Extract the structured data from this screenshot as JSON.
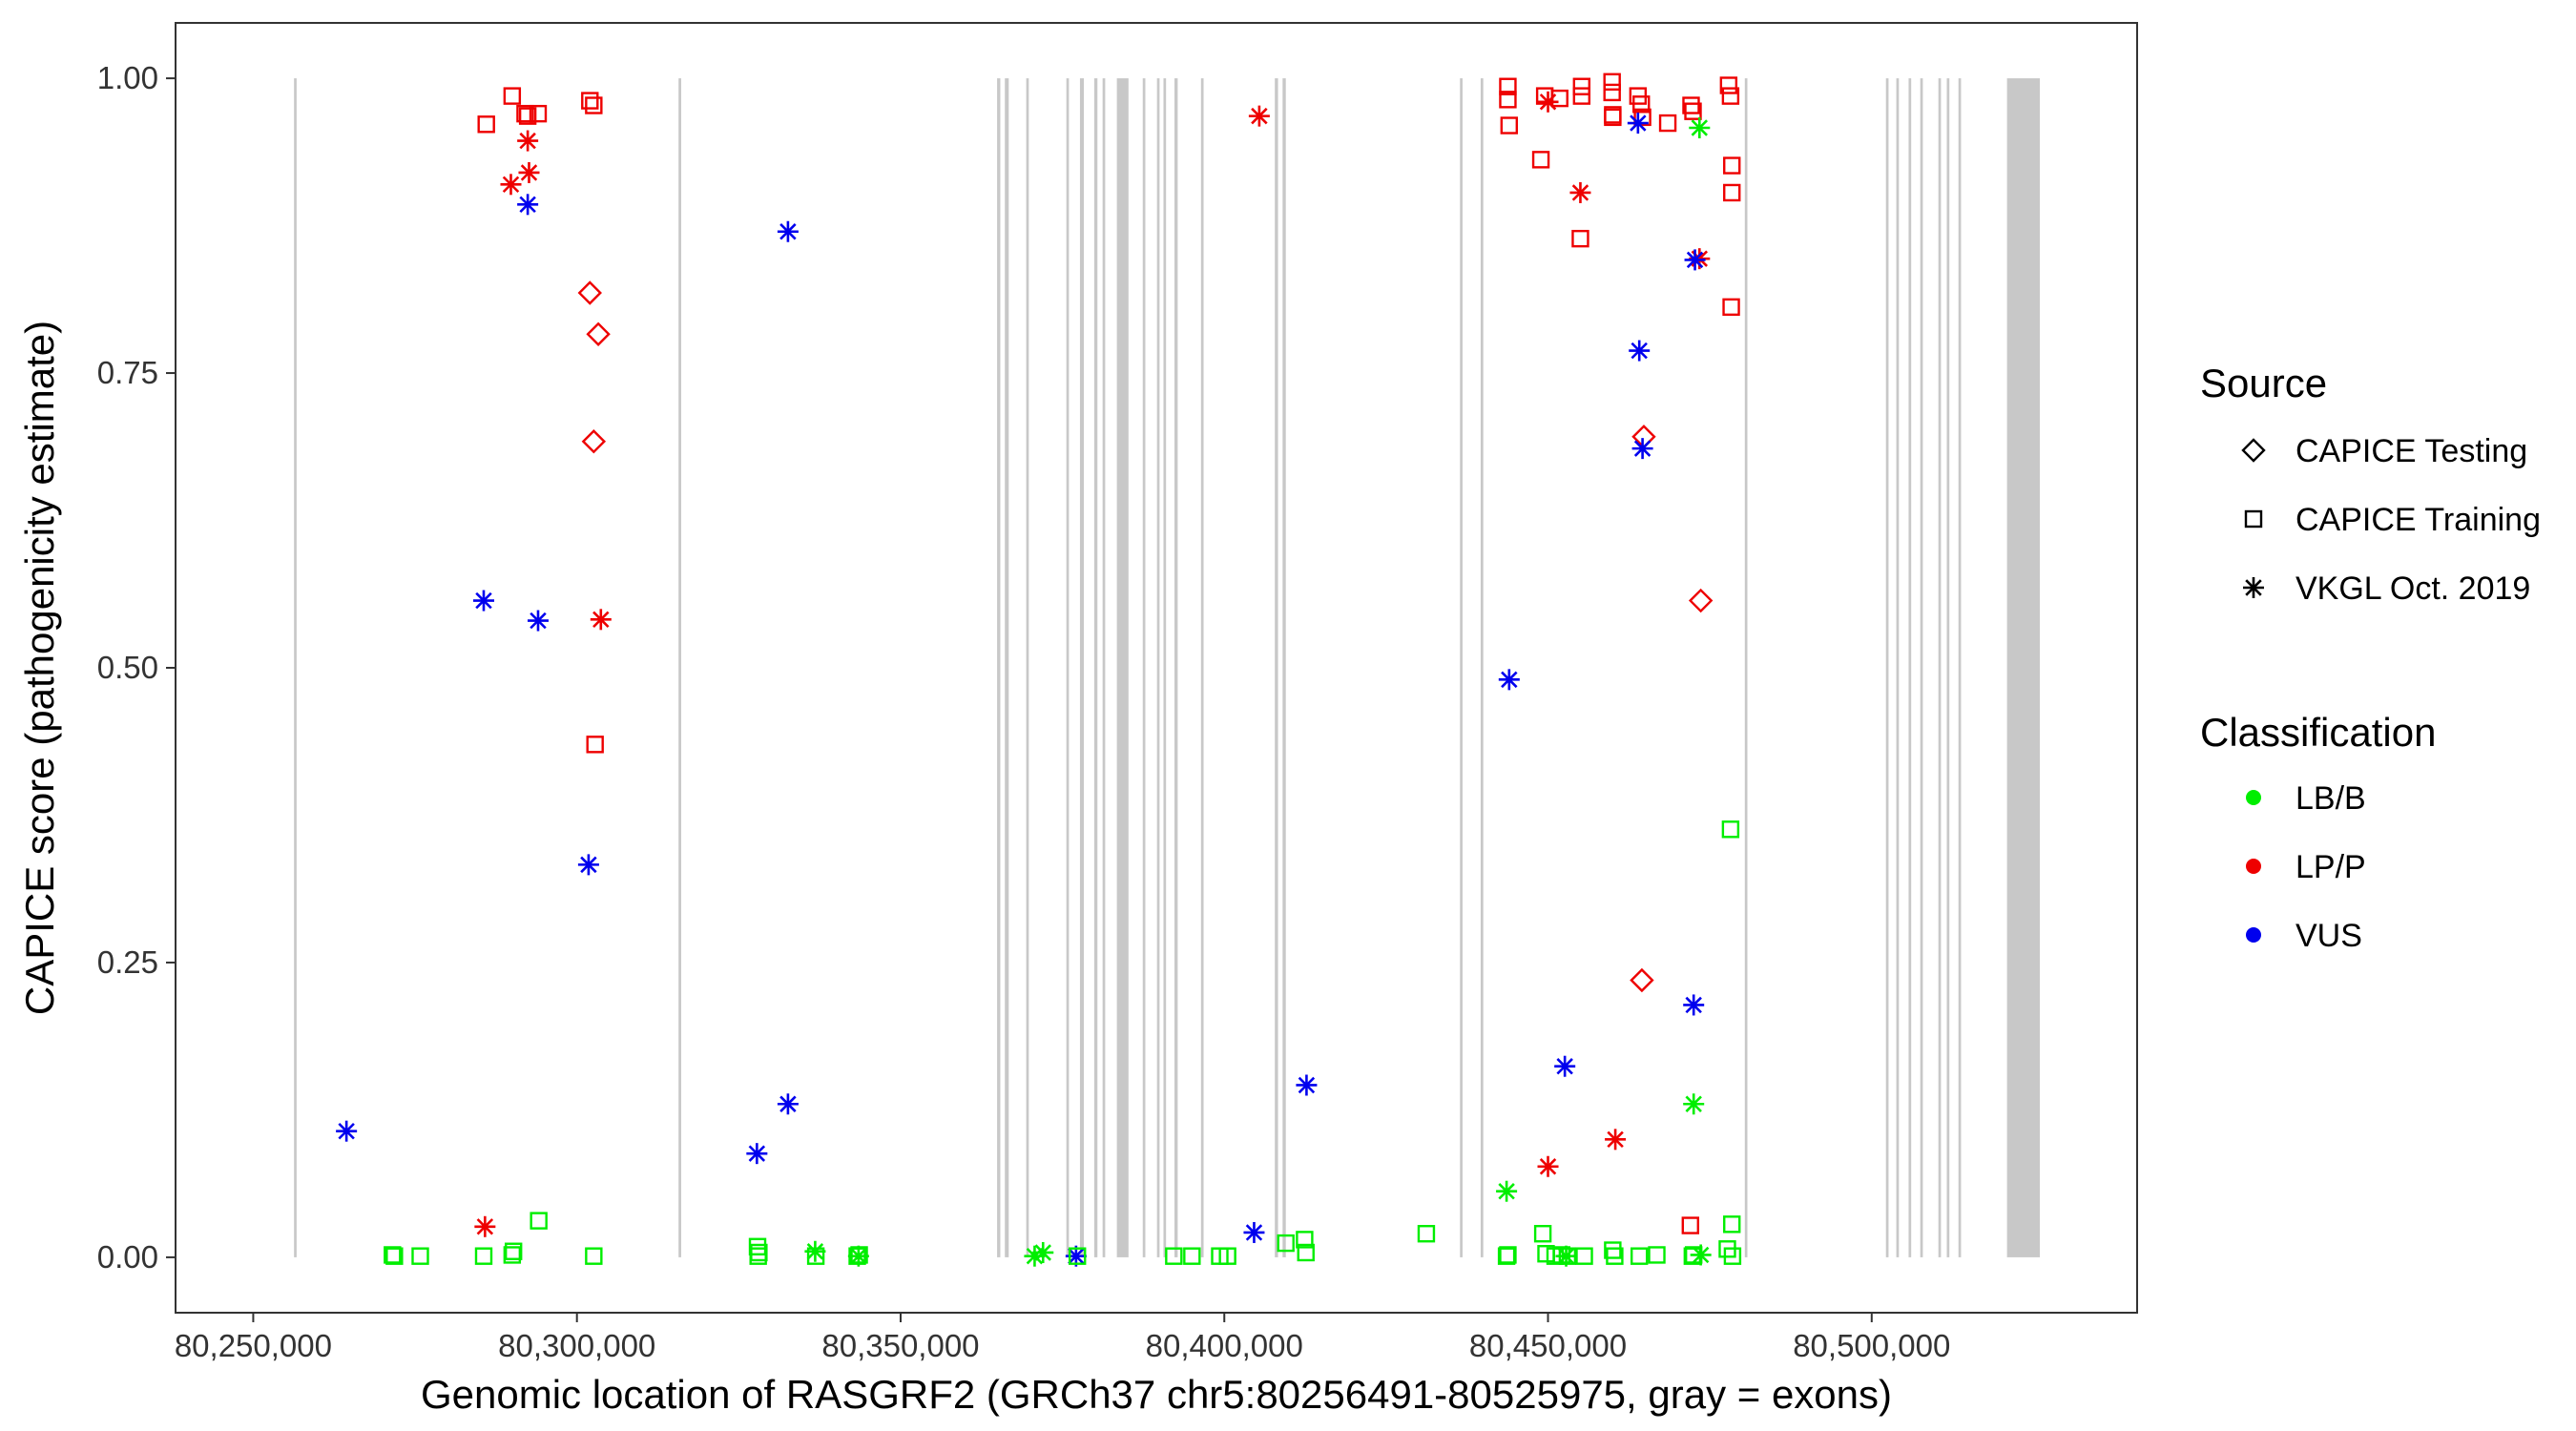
{
  "chart_data": {
    "type": "scatter",
    "xlabel": "Genomic location of RASGRF2 (GRCh37 chr5:80256491-80525975, gray = exons)",
    "ylabel": "CAPICE score (pathogenicity estimate)",
    "xlim": [
      80238000,
      80541000
    ],
    "ylim": [
      -0.047,
      1.047
    ],
    "xticks": [
      80250000,
      80300000,
      80350000,
      80400000,
      80450000,
      80500000
    ],
    "xtick_labels": [
      "80,250,000",
      "80,300,000",
      "80,350,000",
      "80,400,000",
      "80,450,000",
      "80,500,000"
    ],
    "yticks": [
      0,
      0.25,
      0.5,
      0.75,
      1.0
    ],
    "ytick_labels": [
      "0.00",
      "0.25",
      "0.50",
      "0.75",
      "1.00"
    ],
    "grid": false,
    "legend_position": "right",
    "exons": [
      [
        80256300,
        80256700
      ],
      [
        80315700,
        80316100
      ],
      [
        80364900,
        80365400
      ],
      [
        80366100,
        80366700
      ],
      [
        80369400,
        80369800
      ],
      [
        80375600,
        80376000
      ],
      [
        80377700,
        80378300
      ],
      [
        80379900,
        80380400
      ],
      [
        80381200,
        80381600
      ],
      [
        80383400,
        80385200
      ],
      [
        80387400,
        80387800
      ],
      [
        80389600,
        80390000
      ],
      [
        80390600,
        80391000
      ],
      [
        80392300,
        80392800
      ],
      [
        80396400,
        80396800
      ],
      [
        80407800,
        80408300
      ],
      [
        80409000,
        80409500
      ],
      [
        80436400,
        80436800
      ],
      [
        80439600,
        80440000
      ],
      [
        80480400,
        80480800
      ],
      [
        80502200,
        80502600
      ],
      [
        80503800,
        80504200
      ],
      [
        80505700,
        80506100
      ],
      [
        80507500,
        80507900
      ],
      [
        80510300,
        80510700
      ],
      [
        80511600,
        80512000
      ],
      [
        80513400,
        80513800
      ],
      [
        80520900,
        80525975
      ]
    ],
    "legend": {
      "source": {
        "title": "Source",
        "items": [
          {
            "label": "CAPICE Testing",
            "shape": "diamond"
          },
          {
            "label": "CAPICE Training",
            "shape": "square"
          },
          {
            "label": "VKGL Oct. 2019",
            "shape": "asterisk"
          }
        ]
      },
      "classification": {
        "title": "Classification",
        "items": [
          {
            "label": "LB/B",
            "color": "#00ee00"
          },
          {
            "label": "LP/P",
            "color": "#ee0000"
          },
          {
            "label": "VUS",
            "color": "#0000ee"
          }
        ]
      }
    },
    "series": [
      {
        "source": "CAPICE Testing",
        "classification": "LP/P",
        "shape": "diamond",
        "color": "#ee0000",
        "x": [
          80302000,
          80303300,
          80302600,
          80464800,
          80473600,
          80464500
        ],
        "y": [
          0.818,
          0.783,
          0.692,
          0.696,
          0.557,
          0.235
        ]
      },
      {
        "source": "CAPICE Training",
        "classification": "LP/P",
        "shape": "square",
        "color": "#ee0000",
        "x": [
          80286000,
          80290000,
          80292000,
          80294000,
          80302000,
          80302600,
          80443800,
          80443800,
          80444000,
          80448900,
          80449500,
          80451800,
          80455200,
          80455200,
          80459900,
          80459900,
          80460000,
          80463900,
          80464400,
          80464600,
          80468500,
          80472100,
          80472400,
          80477900,
          80478200,
          80478400,
          80478400,
          80478300,
          80302800,
          80472000,
          80292400,
          80455000,
          80460000
        ],
        "y": [
          0.961,
          0.985,
          0.97,
          0.97,
          0.981,
          0.977,
          0.993,
          0.982,
          0.96,
          0.931,
          0.985,
          0.983,
          0.993,
          0.985,
          0.997,
          0.988,
          0.967,
          0.985,
          0.978,
          0.967,
          0.962,
          0.977,
          0.972,
          0.994,
          0.985,
          0.926,
          0.903,
          0.806,
          0.435,
          0.027,
          0.968,
          0.864,
          0.969
        ]
      },
      {
        "source": "VKGL Oct. 2019",
        "classification": "LP/P",
        "shape": "asterisk",
        "color": "#ee0000",
        "x": [
          80292400,
          80289800,
          80292600,
          80303700,
          80285800,
          80405400,
          80450000,
          80455000,
          80473400,
          80450000,
          80460400
        ],
        "y": [
          0.947,
          0.91,
          0.92,
          0.541,
          0.026,
          0.968,
          0.98,
          0.903,
          0.847,
          0.077,
          0.1
        ]
      },
      {
        "source": "VKGL Oct. 2019",
        "classification": "VUS",
        "shape": "asterisk",
        "color": "#0000ee",
        "x": [
          80292400,
          80332600,
          80285600,
          80294000,
          80301800,
          80264400,
          80332600,
          80327800,
          80377100,
          80404600,
          80412700,
          80463900,
          80472700,
          80464100,
          80464600,
          80444000,
          80472500,
          80452600
        ],
        "y": [
          0.893,
          0.87,
          0.557,
          0.54,
          0.333,
          0.107,
          0.13,
          0.088,
          0.001,
          0.021,
          0.146,
          0.962,
          0.846,
          0.769,
          0.686,
          0.49,
          0.214,
          0.162
        ]
      },
      {
        "source": "VKGL Oct. 2019",
        "classification": "LB/B",
        "shape": "asterisk",
        "color": "#00ee00",
        "x": [
          80336800,
          80343500,
          80370700,
          80372000,
          80443600,
          80452800,
          80472500,
          80473400,
          80473600
        ],
        "y": [
          0.005,
          0.001,
          0.001,
          0.004,
          0.056,
          0.001,
          0.13,
          0.958,
          0.002
        ]
      },
      {
        "source": "CAPICE Training",
        "classification": "LB/B",
        "shape": "square",
        "color": "#00ee00",
        "x": [
          80271500,
          80271800,
          80275800,
          80285600,
          80290000,
          80290200,
          80294100,
          80302600,
          80327900,
          80328100,
          80328000,
          80336900,
          80343300,
          80343600,
          80377300,
          80392200,
          80395000,
          80399300,
          80400500,
          80409500,
          80412400,
          80412600,
          80431200,
          80443600,
          80443800,
          80449200,
          80449700,
          80451100,
          80452100,
          80453000,
          80455600,
          80460000,
          80460300,
          80464100,
          80466800,
          80472300,
          80472500,
          80477700,
          80478400,
          80478200,
          80478500
        ],
        "y": [
          0.002,
          0.001,
          0.001,
          0.001,
          0.002,
          0.005,
          0.031,
          0.001,
          0.009,
          0.004,
          0.001,
          0.001,
          0.001,
          0.002,
          0.001,
          0.001,
          0.001,
          0.001,
          0.001,
          0.012,
          0.015,
          0.004,
          0.02,
          0.001,
          0.002,
          0.02,
          0.003,
          0.001,
          0.002,
          0.001,
          0.001,
          0.006,
          0.001,
          0.001,
          0.002,
          0.001,
          0.002,
          0.007,
          0.028,
          0.363,
          0.001
        ]
      }
    ]
  }
}
